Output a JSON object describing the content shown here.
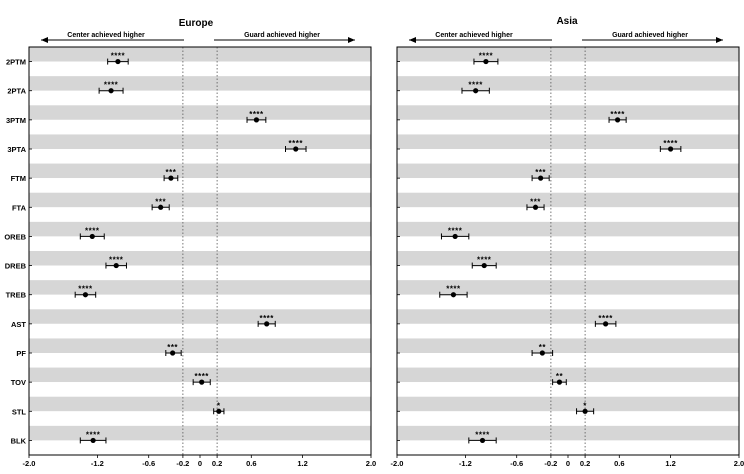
{
  "chart_data": [
    {
      "type": "forest",
      "title": "Europe",
      "direction_left": "Center achieved higher",
      "direction_right": "Guard achieved higher",
      "xlim": [
        -2.0,
        2.0
      ],
      "xticks": [
        "-2.0",
        "-1.2",
        "-0.6",
        "-0.2",
        "0",
        "0.2",
        "0.6",
        "1.2",
        "2.0"
      ],
      "reference_lines": [
        -0.2,
        0.2
      ],
      "categories": [
        "2PTM",
        "2PTA",
        "3PTM",
        "3PTA",
        "FTM",
        "FTA",
        "OREB",
        "DREB",
        "TREB",
        "AST",
        "PF",
        "TOV",
        "STL",
        "BLK"
      ],
      "values": [
        -0.96,
        -1.04,
        0.66,
        1.12,
        -0.34,
        -0.46,
        -1.26,
        -0.98,
        -1.34,
        0.78,
        -0.32,
        0.02,
        0.22,
        -1.25
      ],
      "ci_low": [
        -1.08,
        -1.18,
        0.55,
        1.0,
        -0.42,
        -0.56,
        -1.4,
        -1.1,
        -1.46,
        0.68,
        -0.4,
        -0.08,
        0.16,
        -1.4
      ],
      "ci_high": [
        -0.84,
        -0.9,
        0.77,
        1.24,
        -0.26,
        -0.36,
        -1.12,
        -0.86,
        -1.22,
        0.88,
        -0.22,
        0.12,
        0.28,
        -1.1
      ],
      "significance": [
        "****",
        "****",
        "****",
        "****",
        "***",
        "***",
        "****",
        "****",
        "****",
        "****",
        "***",
        "****",
        "*",
        "****"
      ]
    },
    {
      "type": "forest",
      "title": "Asia",
      "direction_left": "Center achieved higher",
      "direction_right": "Guard achieved higher",
      "xlim": [
        -2.0,
        2.0
      ],
      "xticks": [
        "-2.0",
        "-1.2",
        "-0.6",
        "-0.2",
        "0",
        "0.2",
        "0.6",
        "1.2",
        "2.0"
      ],
      "reference_lines": [
        -0.2,
        0.2
      ],
      "categories": [
        "2PTM",
        "2PTA",
        "3PTM",
        "3PTA",
        "FTM",
        "FTA",
        "OREB",
        "DREB",
        "TREB",
        "AST",
        "PF",
        "TOV",
        "STL",
        "BLK"
      ],
      "values": [
        -0.96,
        -1.08,
        0.58,
        1.2,
        -0.32,
        -0.38,
        -1.32,
        -0.98,
        -1.34,
        0.44,
        -0.3,
        -0.1,
        0.2,
        -1.0
      ],
      "ci_low": [
        -1.1,
        -1.24,
        0.48,
        1.08,
        -0.42,
        -0.48,
        -1.48,
        -1.12,
        -1.5,
        0.32,
        -0.42,
        -0.18,
        0.1,
        -1.16
      ],
      "ci_high": [
        -0.82,
        -0.92,
        0.68,
        1.32,
        -0.22,
        -0.28,
        -1.16,
        -0.84,
        -1.18,
        0.56,
        -0.18,
        -0.02,
        0.3,
        -0.84
      ],
      "significance": [
        "****",
        "****",
        "****",
        "****",
        "***",
        "***",
        "****",
        "****",
        "****",
        "****",
        "**",
        "**",
        "*",
        "****"
      ]
    }
  ]
}
